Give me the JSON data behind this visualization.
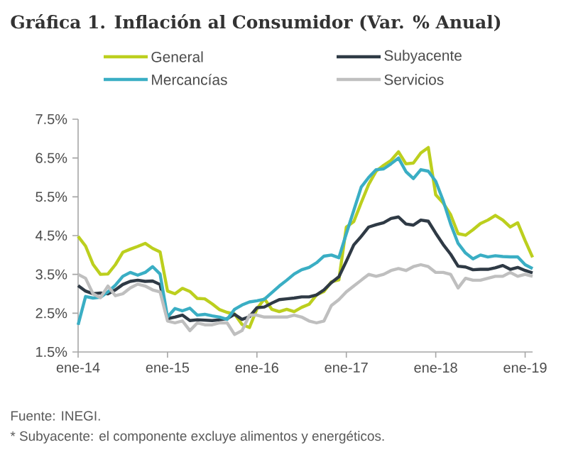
{
  "chart_data": {
    "type": "line",
    "title": "Gráfica 1. Inflación al Consumidor (Var. % Anual)",
    "x": [
      "2014-01",
      "2014-02",
      "2014-03",
      "2014-04",
      "2014-05",
      "2014-06",
      "2014-07",
      "2014-08",
      "2014-09",
      "2014-10",
      "2014-11",
      "2014-12",
      "2015-01",
      "2015-02",
      "2015-03",
      "2015-04",
      "2015-05",
      "2015-06",
      "2015-07",
      "2015-08",
      "2015-09",
      "2015-10",
      "2015-11",
      "2015-12",
      "2016-01",
      "2016-02",
      "2016-03",
      "2016-04",
      "2016-05",
      "2016-06",
      "2016-07",
      "2016-08",
      "2016-09",
      "2016-10",
      "2016-11",
      "2016-12",
      "2017-01",
      "2017-02",
      "2017-03",
      "2017-04",
      "2017-05",
      "2017-06",
      "2017-07",
      "2017-08",
      "2017-09",
      "2017-10",
      "2017-11",
      "2017-12",
      "2018-01",
      "2018-02",
      "2018-03",
      "2018-04",
      "2018-05",
      "2018-06",
      "2018-07",
      "2018-08",
      "2018-09",
      "2018-10",
      "2018-11",
      "2018-12",
      "2019-01",
      "2019-02"
    ],
    "series": [
      {
        "name": "General",
        "color": "#bccf1e",
        "values": [
          4.48,
          4.23,
          3.76,
          3.5,
          3.51,
          3.75,
          4.07,
          4.15,
          4.22,
          4.3,
          4.17,
          4.08,
          3.07,
          3.0,
          3.14,
          3.06,
          2.88,
          2.87,
          2.74,
          2.59,
          2.52,
          2.48,
          2.21,
          2.13,
          2.61,
          2.87,
          2.6,
          2.54,
          2.6,
          2.54,
          2.65,
          2.73,
          2.97,
          3.06,
          3.31,
          3.36,
          4.72,
          4.86,
          5.35,
          5.82,
          6.16,
          6.31,
          6.44,
          6.66,
          6.35,
          6.37,
          6.63,
          6.77,
          5.55,
          5.34,
          5.04,
          4.55,
          4.51,
          4.65,
          4.81,
          4.9,
          5.02,
          4.9,
          4.72,
          4.83,
          4.37,
          3.94
        ]
      },
      {
        "name": "Subyacente",
        "color": "#2f3a45",
        "values": [
          3.21,
          3.07,
          3.0,
          3.02,
          3.0,
          3.1,
          3.24,
          3.32,
          3.35,
          3.32,
          3.33,
          3.24,
          2.36,
          2.4,
          2.45,
          2.31,
          2.33,
          2.32,
          2.31,
          2.33,
          2.36,
          2.47,
          2.34,
          2.41,
          2.64,
          2.66,
          2.76,
          2.85,
          2.87,
          2.89,
          2.92,
          2.92,
          2.97,
          3.1,
          3.29,
          3.44,
          3.84,
          4.26,
          4.48,
          4.72,
          4.78,
          4.83,
          4.94,
          4.98,
          4.8,
          4.77,
          4.9,
          4.87,
          4.56,
          4.27,
          4.02,
          3.71,
          3.69,
          3.62,
          3.63,
          3.63,
          3.67,
          3.73,
          3.63,
          3.68,
          3.6,
          3.54
        ]
      },
      {
        "name": "Mercancías",
        "color": "#3aaec4",
        "values": [
          2.2,
          2.93,
          2.89,
          2.91,
          3.05,
          3.22,
          3.45,
          3.55,
          3.48,
          3.55,
          3.7,
          3.51,
          2.4,
          2.62,
          2.56,
          2.63,
          2.45,
          2.47,
          2.43,
          2.4,
          2.34,
          2.6,
          2.71,
          2.79,
          2.82,
          2.86,
          3.03,
          3.2,
          3.35,
          3.51,
          3.62,
          3.68,
          3.8,
          3.97,
          4.0,
          3.93,
          4.55,
          5.15,
          5.75,
          6.0,
          6.2,
          6.22,
          6.35,
          6.5,
          6.15,
          5.97,
          6.2,
          6.16,
          5.9,
          5.4,
          4.8,
          4.3,
          4.05,
          3.9,
          4.0,
          3.95,
          3.98,
          3.96,
          3.95,
          3.95,
          3.75,
          3.65
        ]
      },
      {
        "name": "Servicios",
        "color": "#bfbfbf",
        "values": [
          3.5,
          3.4,
          3.0,
          2.9,
          3.2,
          2.95,
          3.0,
          3.15,
          3.25,
          3.2,
          3.1,
          3.05,
          2.3,
          2.25,
          2.3,
          2.05,
          2.25,
          2.2,
          2.2,
          2.25,
          2.25,
          1.95,
          2.05,
          2.45,
          2.45,
          2.4,
          2.4,
          2.4,
          2.4,
          2.45,
          2.4,
          2.3,
          2.25,
          2.3,
          2.7,
          2.85,
          3.05,
          3.2,
          3.35,
          3.5,
          3.45,
          3.5,
          3.6,
          3.65,
          3.6,
          3.7,
          3.75,
          3.7,
          3.55,
          3.55,
          3.5,
          3.15,
          3.4,
          3.35,
          3.35,
          3.4,
          3.45,
          3.45,
          3.55,
          3.45,
          3.5,
          3.45
        ]
      }
    ],
    "xlim": [
      "2014-01",
      "2019-02"
    ],
    "xticks": [
      {
        "value": "2014-01",
        "label": "ene-14"
      },
      {
        "value": "2015-01",
        "label": "ene-15"
      },
      {
        "value": "2016-01",
        "label": "ene-16"
      },
      {
        "value": "2017-01",
        "label": "ene-17"
      },
      {
        "value": "2018-01",
        "label": "ene-18"
      },
      {
        "value": "2019-01",
        "label": "ene-19"
      }
    ],
    "ylim": [
      1.5,
      7.5
    ],
    "yticks": [
      {
        "value": 1.5,
        "label": "1.5%"
      },
      {
        "value": 2.5,
        "label": "2.5%"
      },
      {
        "value": 3.5,
        "label": "3.5%"
      },
      {
        "value": 4.5,
        "label": "4.5%"
      },
      {
        "value": 5.5,
        "label": "5.5%"
      },
      {
        "value": 6.5,
        "label": "6.5%"
      },
      {
        "value": 7.5,
        "label": "7.5%"
      }
    ],
    "legend": "top",
    "grid": false,
    "line_style": "solid",
    "annotations": [
      "Fuente: INEGI.",
      "* Subyacente: el componente excluye alimentos y energéticos."
    ]
  }
}
